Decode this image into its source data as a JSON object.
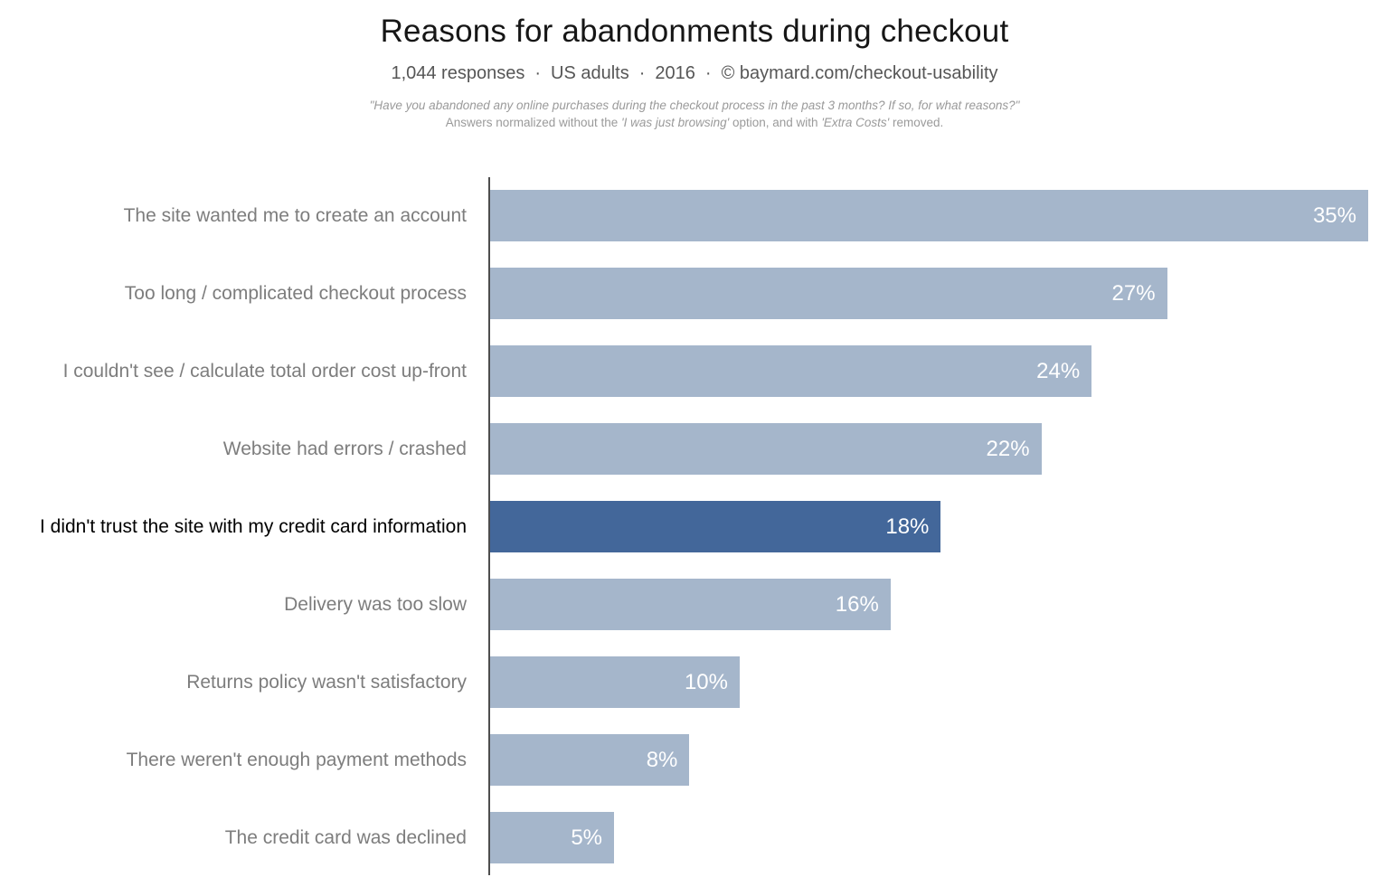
{
  "header": {
    "title": "Reasons for abandonments during checkout",
    "subtitle_parts": [
      "1,044 responses",
      "US adults",
      "2016",
      "©  baymard.com/checkout-usability"
    ],
    "separator": "·",
    "note_line1": "\"Have you abandoned any online purchases during the checkout process in the past 3 months? If so, for what reasons?\"",
    "note_line2": {
      "prefix": "Answers normalized without the ",
      "italic1": "'I was just browsing'",
      "mid": " option, and with ",
      "italic2": "'Extra Costs'",
      "suffix": " removed."
    }
  },
  "chart_data": {
    "type": "bar",
    "orientation": "horizontal",
    "title": "Reasons for abandonments during checkout",
    "categories": [
      "The site wanted me to create an account",
      "Too long / complicated checkout process",
      "I couldn't see / calculate total order cost up-front",
      "Website had errors / crashed",
      "I didn't trust the site with my credit card information",
      "Delivery was too slow",
      "Returns policy wasn't satisfactory",
      "There weren't enough payment methods",
      "The credit card was declined"
    ],
    "values": [
      35,
      27,
      24,
      22,
      18,
      16,
      10,
      8,
      5
    ],
    "value_labels": [
      "35%",
      "27%",
      "24%",
      "22%",
      "18%",
      "16%",
      "10%",
      "8%",
      "5%"
    ],
    "xlim": [
      0,
      35
    ],
    "highlight_index": 4,
    "bar_color": "#a5b6cb",
    "highlight_color": "#43679a",
    "value_label_color": "#ffffff",
    "axis_color": "#4d4d4d",
    "legend": "none",
    "grid": false
  }
}
